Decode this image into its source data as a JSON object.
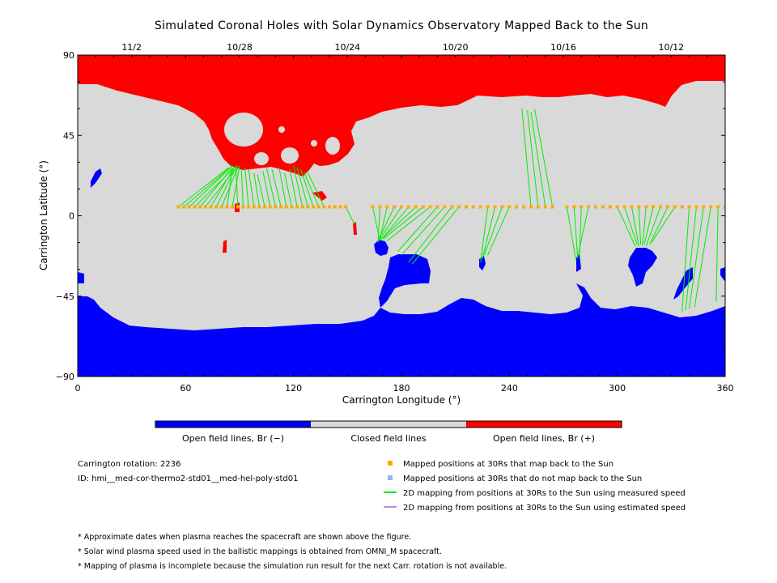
{
  "chart_data": {
    "type": "map",
    "title": "Simulated Coronal Holes with Solar Dynamics Observatory Mapped Back to the Sun",
    "xlabel": "Carrington Longitude (°)",
    "ylabel": "Carrington Latitude (°)",
    "xlim": [
      0,
      360
    ],
    "ylim": [
      -90,
      90
    ],
    "x_ticks": [
      "0",
      "60",
      "120",
      "180",
      "240",
      "300",
      "360"
    ],
    "y_ticks": [
      "90",
      "45",
      "0",
      "−45",
      "−90"
    ],
    "top_dates": [
      {
        "label": "11/2",
        "lon": 30
      },
      {
        "label": "10/28",
        "lon": 90
      },
      {
        "label": "10/24",
        "lon": 150
      },
      {
        "label": "10/20",
        "lon": 210
      },
      {
        "label": "10/16",
        "lon": 270
      },
      {
        "label": "10/12",
        "lon": 330
      }
    ],
    "colorbar": [
      {
        "label": "Open field lines, Br (−)",
        "color": "#0000ff"
      },
      {
        "label": "Closed field lines",
        "color": "#d9d9d9"
      },
      {
        "label": "Open field lines, Br (+)",
        "color": "#ff0000"
      }
    ],
    "colors": {
      "negative": "#0000ff",
      "closed": "#d9d9d9",
      "positive": "#ff0000",
      "mapped": "#ffaa00",
      "not_mapped": "#88bbee",
      "measured": "#00ee00",
      "estimated": "#bb88ee"
    },
    "mapped_lat": 5,
    "mapped_positions_lon": [
      56,
      59,
      62,
      65,
      68,
      71,
      74,
      77,
      80,
      83,
      86,
      89,
      92,
      95,
      98,
      101,
      104,
      107,
      110,
      113,
      116,
      119,
      122,
      125,
      128,
      131,
      134,
      137,
      140,
      143,
      146,
      149,
      164,
      168,
      172,
      176,
      180,
      184,
      188,
      192,
      196,
      200,
      204,
      208,
      212,
      216,
      220,
      224,
      228,
      232,
      236,
      240,
      244,
      248,
      252,
      256,
      260,
      264,
      272,
      276,
      280,
      284,
      288,
      292,
      296,
      300,
      304,
      308,
      312,
      316,
      320,
      324,
      328,
      332,
      336,
      340,
      344,
      348,
      352,
      356,
      360
    ],
    "footpoints": [
      {
        "from": 56,
        "to": [
          84,
          27
        ]
      },
      {
        "from": 59,
        "to": [
          86,
          28
        ]
      },
      {
        "from": 62,
        "to": [
          85,
          27
        ]
      },
      {
        "from": 65,
        "to": [
          88,
          28
        ]
      },
      {
        "from": 68,
        "to": [
          86,
          27
        ]
      },
      {
        "from": 71,
        "to": [
          89,
          28
        ]
      },
      {
        "from": 74,
        "to": [
          87,
          27
        ]
      },
      {
        "from": 77,
        "to": [
          88,
          27
        ]
      },
      {
        "from": 80,
        "to": [
          89,
          27
        ]
      },
      {
        "from": 83,
        "to": [
          86,
          26
        ]
      },
      {
        "from": 86,
        "to": [
          90,
          28
        ]
      },
      {
        "from": 89,
        "to": [
          88,
          27
        ]
      },
      {
        "from": 92,
        "to": [
          91,
          26
        ]
      },
      {
        "from": 95,
        "to": [
          93,
          27
        ]
      },
      {
        "from": 98,
        "to": [
          95,
          26
        ]
      },
      {
        "from": 101,
        "to": [
          98,
          24
        ]
      },
      {
        "from": 104,
        "to": [
          100,
          23
        ]
      },
      {
        "from": 107,
        "to": [
          103,
          25
        ]
      },
      {
        "from": 110,
        "to": [
          105,
          27
        ]
      },
      {
        "from": 113,
        "to": [
          108,
          26
        ]
      },
      {
        "from": 116,
        "to": [
          112,
          27
        ]
      },
      {
        "from": 119,
        "to": [
          115,
          24
        ]
      },
      {
        "from": 122,
        "to": [
          118,
          26
        ]
      },
      {
        "from": 125,
        "to": [
          120,
          28
        ]
      },
      {
        "from": 128,
        "to": [
          122,
          27
        ]
      },
      {
        "from": 131,
        "to": [
          124,
          26
        ]
      },
      {
        "from": 134,
        "to": [
          126,
          24
        ]
      },
      {
        "from": 137,
        "to": [
          128,
          24
        ]
      },
      {
        "from": 149,
        "to": [
          154,
          -5
        ]
      },
      {
        "from": 164,
        "to": [
          168,
          -14
        ]
      },
      {
        "from": 168,
        "to": [
          167,
          -15
        ]
      },
      {
        "from": 172,
        "to": [
          168,
          -13
        ]
      },
      {
        "from": 176,
        "to": [
          167,
          -14
        ]
      },
      {
        "from": 180,
        "to": [
          168,
          -13
        ]
      },
      {
        "from": 184,
        "to": [
          169,
          -13
        ]
      },
      {
        "from": 188,
        "to": [
          168,
          -14
        ]
      },
      {
        "from": 192,
        "to": [
          170,
          -13
        ]
      },
      {
        "from": 196,
        "to": [
          172,
          -14
        ]
      },
      {
        "from": 200,
        "to": [
          178,
          -20
        ]
      },
      {
        "from": 204,
        "to": [
          180,
          -22
        ]
      },
      {
        "from": 208,
        "to": [
          184,
          -26
        ]
      },
      {
        "from": 212,
        "to": [
          186,
          -27
        ]
      },
      {
        "from": 228,
        "to": [
          224,
          -26
        ]
      },
      {
        "from": 232,
        "to": [
          225,
          -24
        ]
      },
      {
        "from": 236,
        "to": [
          226,
          -22
        ]
      },
      {
        "from": 240,
        "to": [
          228,
          -22
        ]
      },
      {
        "from": 252,
        "to": [
          247,
          60
        ]
      },
      {
        "from": 256,
        "to": [
          250,
          59
        ]
      },
      {
        "from": 260,
        "to": [
          252,
          58
        ]
      },
      {
        "from": 264,
        "to": [
          254,
          60
        ]
      },
      {
        "from": 272,
        "to": [
          277,
          -25
        ]
      },
      {
        "from": 276,
        "to": [
          278,
          -24
        ]
      },
      {
        "from": 280,
        "to": [
          279,
          -22
        ]
      },
      {
        "from": 284,
        "to": [
          278,
          -23
        ]
      },
      {
        "from": 300,
        "to": [
          310,
          -17
        ]
      },
      {
        "from": 304,
        "to": [
          311,
          -16
        ]
      },
      {
        "from": 308,
        "to": [
          312,
          -17
        ]
      },
      {
        "from": 312,
        "to": [
          313,
          -16
        ]
      },
      {
        "from": 316,
        "to": [
          314,
          -17
        ]
      },
      {
        "from": 320,
        "to": [
          315,
          -16
        ]
      },
      {
        "from": 324,
        "to": [
          316,
          -17
        ]
      },
      {
        "from": 328,
        "to": [
          318,
          -16
        ]
      },
      {
        "from": 332,
        "to": [
          319,
          -15
        ]
      },
      {
        "from": 340,
        "to": [
          336,
          -54
        ]
      },
      {
        "from": 344,
        "to": [
          338,
          -53
        ]
      },
      {
        "from": 348,
        "to": [
          340,
          -52
        ]
      },
      {
        "from": 352,
        "to": [
          343,
          -51
        ]
      },
      {
        "from": 356,
        "to": [
          355,
          -48
        ]
      },
      {
        "from": 360,
        "to": [
          360,
          -40
        ]
      }
    ]
  },
  "legend": [
    {
      "label": "Mapped positions at 30Rs that map back to the Sun",
      "kind": "square",
      "color": "#ffaa00"
    },
    {
      "label": "Mapped positions at 30Rs that do not map back to the Sun",
      "kind": "square",
      "color": "#88bbee"
    },
    {
      "label": "2D mapping from positions at 30Rs to the Sun using measured speed",
      "kind": "line",
      "color": "#00ee00"
    },
    {
      "label": "2D mapping from positions at 30Rs to the Sun using estimated speed",
      "kind": "line",
      "color": "#bb88ee"
    }
  ],
  "info": {
    "rotation": "Carrington rotation: 2236",
    "id": "ID: hmi__med-cor-thermo2-std01__med-hel-poly-std01"
  },
  "notes": [
    "* Approximate dates when plasma reaches the spacecraft are shown above the figure.",
    "* Solar wind plasma speed used in the ballistic mappings is obtained from OMNI_M spacecraft.",
    "* Mapping of plasma is incomplete because the simulation run result for the next Carr. rotation is not available."
  ]
}
